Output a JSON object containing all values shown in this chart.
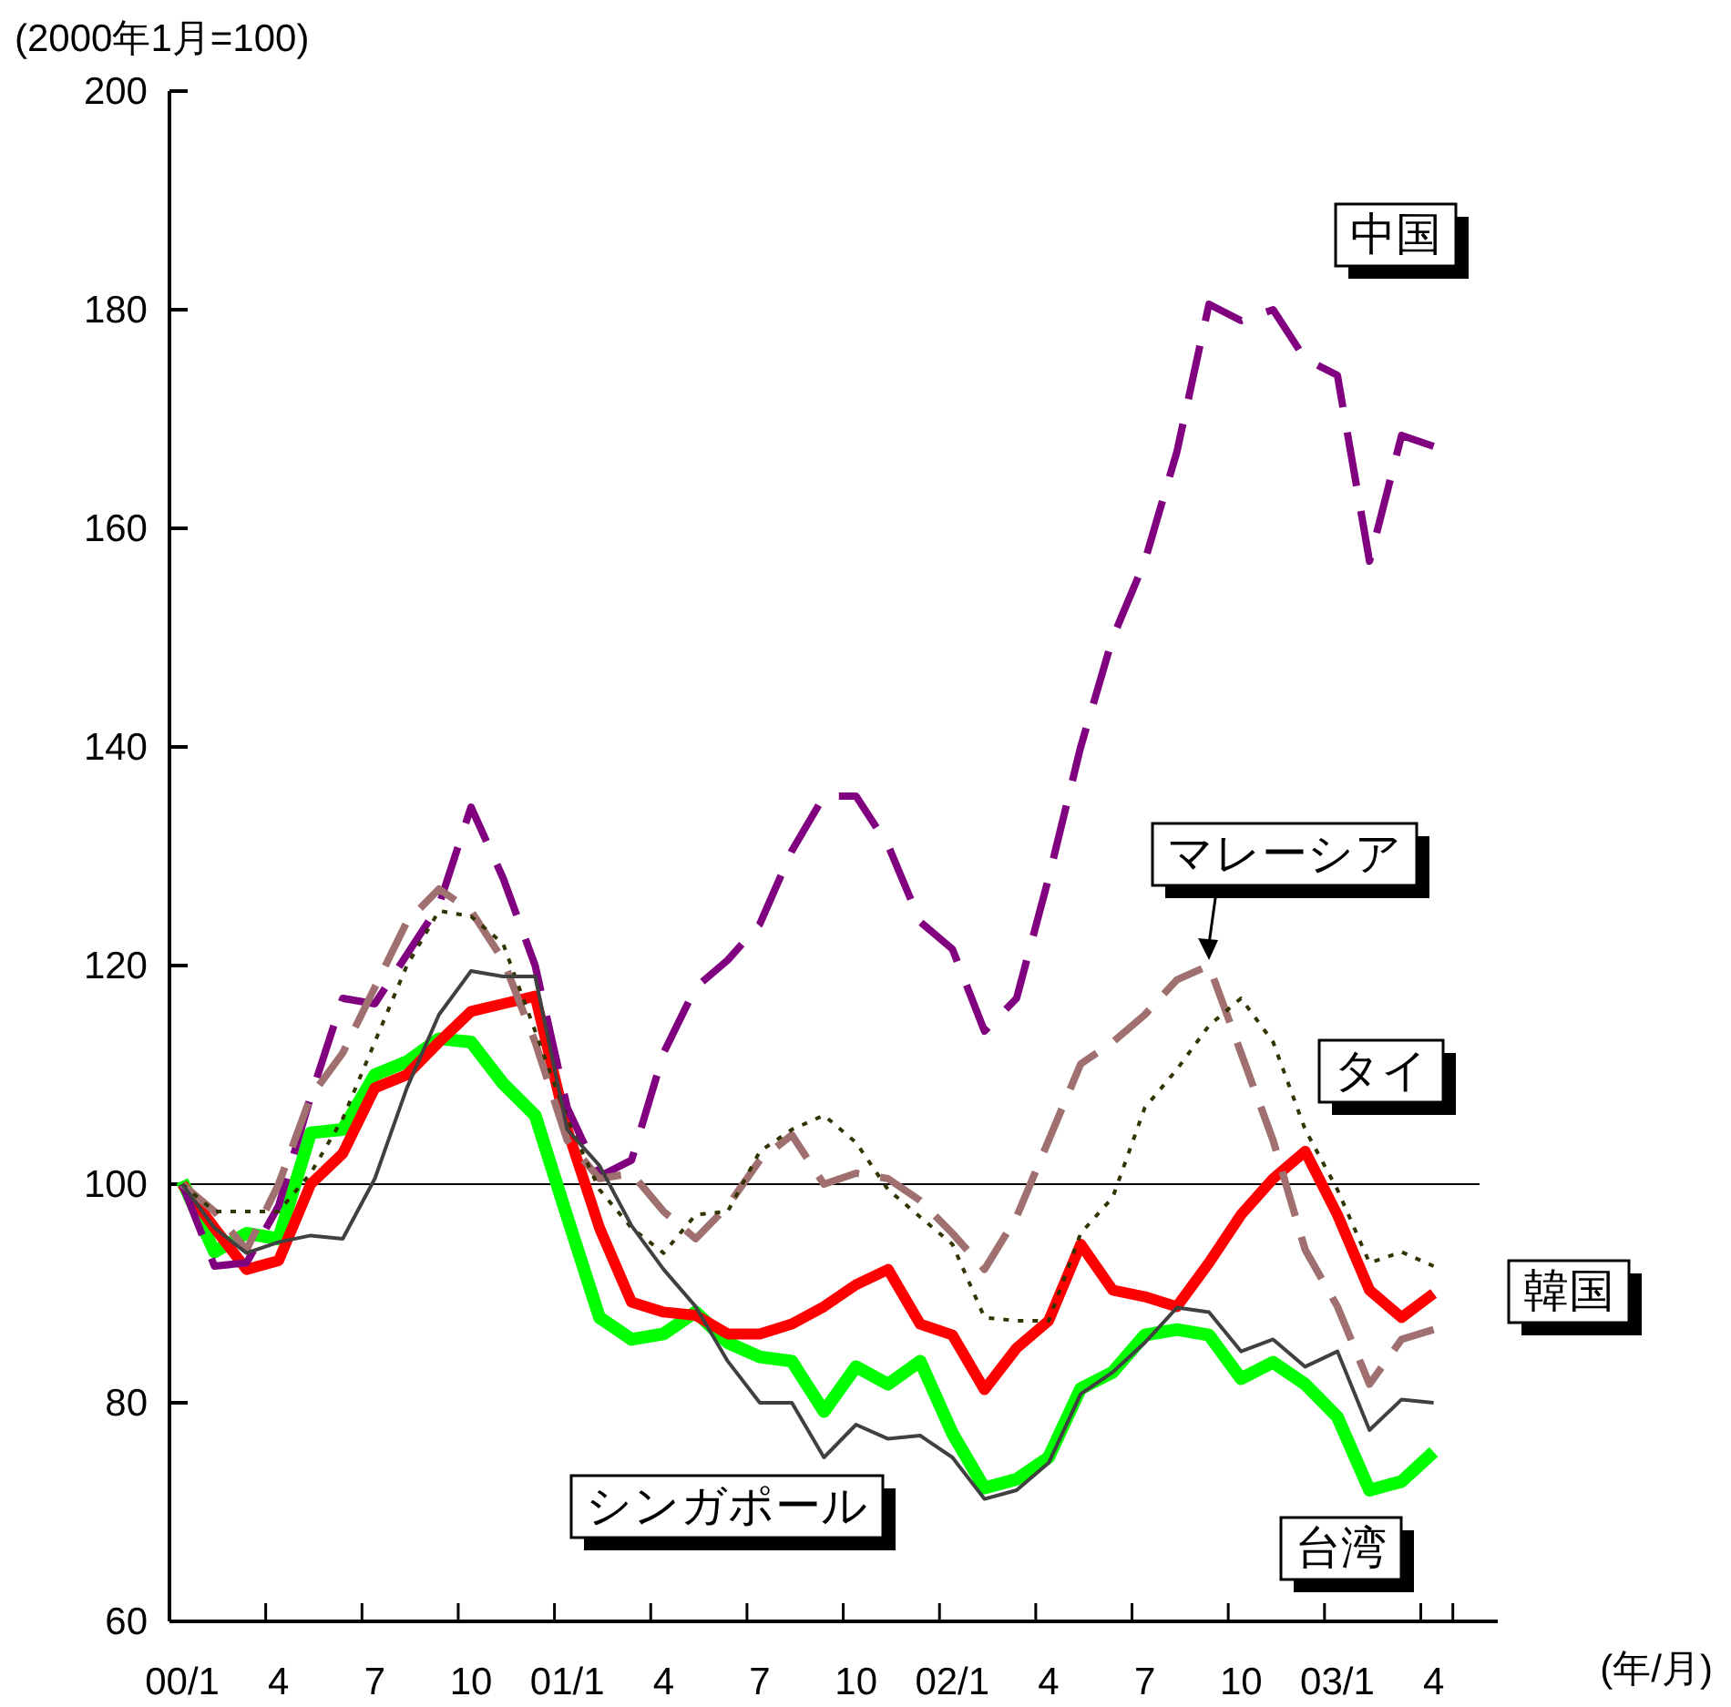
{
  "chart_data": {
    "type": "line",
    "ylabel": "(2000年1月=100)",
    "xlabel": "(年/月)",
    "categories": [
      "00/1",
      null,
      null,
      "4",
      null,
      null,
      "7",
      null,
      null,
      "10",
      null,
      null,
      "01/1",
      null,
      null,
      "4",
      null,
      null,
      "7",
      null,
      null,
      "10",
      null,
      null,
      "02/1",
      null,
      null,
      "4",
      null,
      null,
      "7",
      null,
      null,
      "10",
      null,
      null,
      "03/1",
      null,
      null,
      "4"
    ],
    "ylim": [
      60,
      200
    ],
    "yticks": [
      60,
      80,
      100,
      120,
      140,
      160,
      180,
      200
    ],
    "grid": false,
    "legend": false,
    "ref_lines": [
      {
        "axis": "y",
        "value": 100,
        "color": "#000000"
      }
    ],
    "series": [
      {
        "name": "中国",
        "color": "#800080",
        "line_style": "dashed",
        "values": [
          100,
          92.5,
          92.8,
          98,
          108,
          117,
          116.5,
          121,
          125.5,
          134.5,
          128,
          120,
          107,
          100.7,
          102.2,
          112,
          118,
          120.5,
          123.8,
          130.5,
          135.5,
          135.5,
          131,
          124,
          121.5,
          114,
          117,
          128,
          140,
          150,
          157,
          167,
          180.5,
          179,
          180,
          175.5,
          174,
          157,
          168.5,
          167.5
        ]
      },
      {
        "name": "マレーシア",
        "color": "#a07070",
        "line_style": "dashed",
        "values": [
          100,
          97.5,
          94,
          100,
          108,
          112,
          118,
          124,
          127,
          125,
          120.5,
          113,
          104,
          100.5,
          101,
          97.5,
          95,
          98,
          102.2,
          104.5,
          100,
          101,
          100.5,
          98.5,
          95.5,
          92.2,
          97,
          104,
          111,
          113,
          115.5,
          118.7,
          120,
          112,
          104,
          94,
          88.8,
          81.7,
          85.8,
          86.7
        ]
      },
      {
        "name": "タイ",
        "color": "#333300",
        "line_style": "dotted",
        "values": [
          100,
          97.5,
          97.5,
          97.5,
          101,
          106,
          113,
          120,
          125,
          124.5,
          122,
          114,
          106,
          99.5,
          96,
          93.7,
          97.2,
          97.5,
          103,
          105,
          106.3,
          103.8,
          99.5,
          97,
          94.5,
          87.8,
          87.5,
          87.5,
          95.5,
          98.8,
          107,
          110.5,
          114.5,
          117,
          113,
          105,
          99.5,
          92.8,
          93.8,
          92.5
        ]
      },
      {
        "name": "韓国",
        "color": "#ff0000",
        "line_style": "solid",
        "values": [
          100,
          96,
          92.2,
          93,
          100,
          102.8,
          108.8,
          110,
          113,
          115.8,
          116.5,
          117.2,
          105,
          96,
          89.2,
          88.3,
          88,
          86.3,
          86.3,
          87.2,
          88.8,
          90.8,
          92.2,
          87.2,
          86.2,
          81.2,
          85,
          87.5,
          94.5,
          90.3,
          89.7,
          88.8,
          92.8,
          97.2,
          100.5,
          103,
          97.2,
          90.3,
          87.8,
          90
        ]
      },
      {
        "name": "シンガポール",
        "color": "#404040",
        "line_style": "solid",
        "values": [
          100,
          96,
          93.7,
          94.7,
          95.3,
          95,
          100.5,
          108.8,
          115.5,
          119.5,
          119,
          119,
          105,
          101.7,
          96.2,
          92.2,
          88.8,
          83.8,
          80,
          80,
          75,
          78,
          76.7,
          77,
          75,
          71.2,
          72,
          74.5,
          80.8,
          82.8,
          85.5,
          88.7,
          88.3,
          84.7,
          85.8,
          83.3,
          84.7,
          77.5,
          80.3,
          80
        ]
      },
      {
        "name": "台湾",
        "color": "#00ff00",
        "line_style": "solid",
        "values": [
          100.3,
          93.8,
          95.5,
          95,
          104.7,
          105,
          110,
          111.2,
          113.3,
          113,
          109.2,
          106.3,
          97,
          87.8,
          85.8,
          86.3,
          88.3,
          85.5,
          84.2,
          83.8,
          79.2,
          83.3,
          81.7,
          83.8,
          77.2,
          72.2,
          73,
          75,
          81.3,
          82.8,
          86.2,
          86.7,
          86.2,
          82.2,
          83.7,
          81.7,
          78.7,
          72,
          72.8,
          75.5
        ]
      }
    ]
  }
}
